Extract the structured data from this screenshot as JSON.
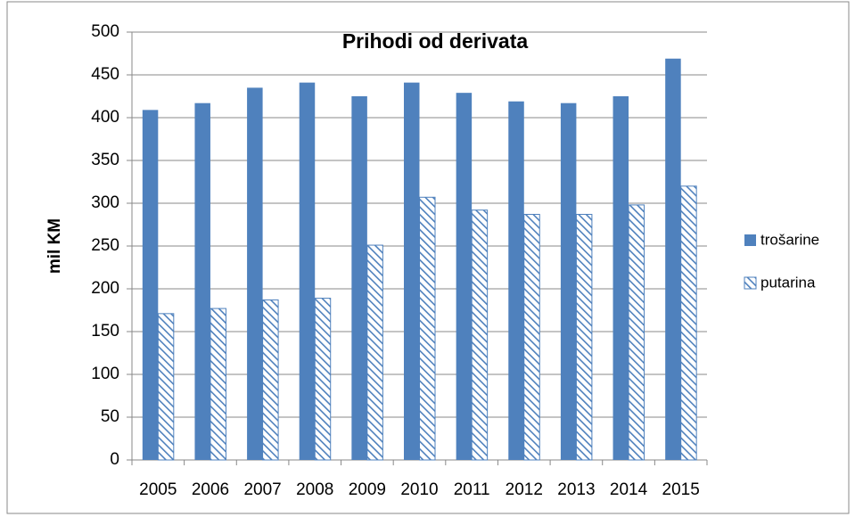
{
  "chart_data": {
    "type": "bar",
    "title": "Prihodi od derivata",
    "y_label": "mil KM",
    "categories": [
      "2005",
      "2006",
      "2007",
      "2008",
      "2009",
      "2010",
      "2011",
      "2012",
      "2013",
      "2014",
      "2015"
    ],
    "series": [
      {
        "name": "trošarine",
        "color": "#4f81bd",
        "pattern": "solid",
        "values": [
          409,
          417,
          435,
          441,
          425,
          441,
          429,
          419,
          417,
          425,
          469
        ]
      },
      {
        "name": "putarina",
        "color": "#4f81bd",
        "pattern": "hatch",
        "values": [
          171,
          177,
          187,
          189,
          251,
          307,
          292,
          287,
          287,
          298,
          320
        ]
      }
    ],
    "ylim": [
      0,
      500
    ],
    "yticks": [
      0,
      50,
      100,
      150,
      200,
      250,
      300,
      350,
      400,
      450,
      500
    ],
    "grid": true,
    "legend": "right"
  }
}
